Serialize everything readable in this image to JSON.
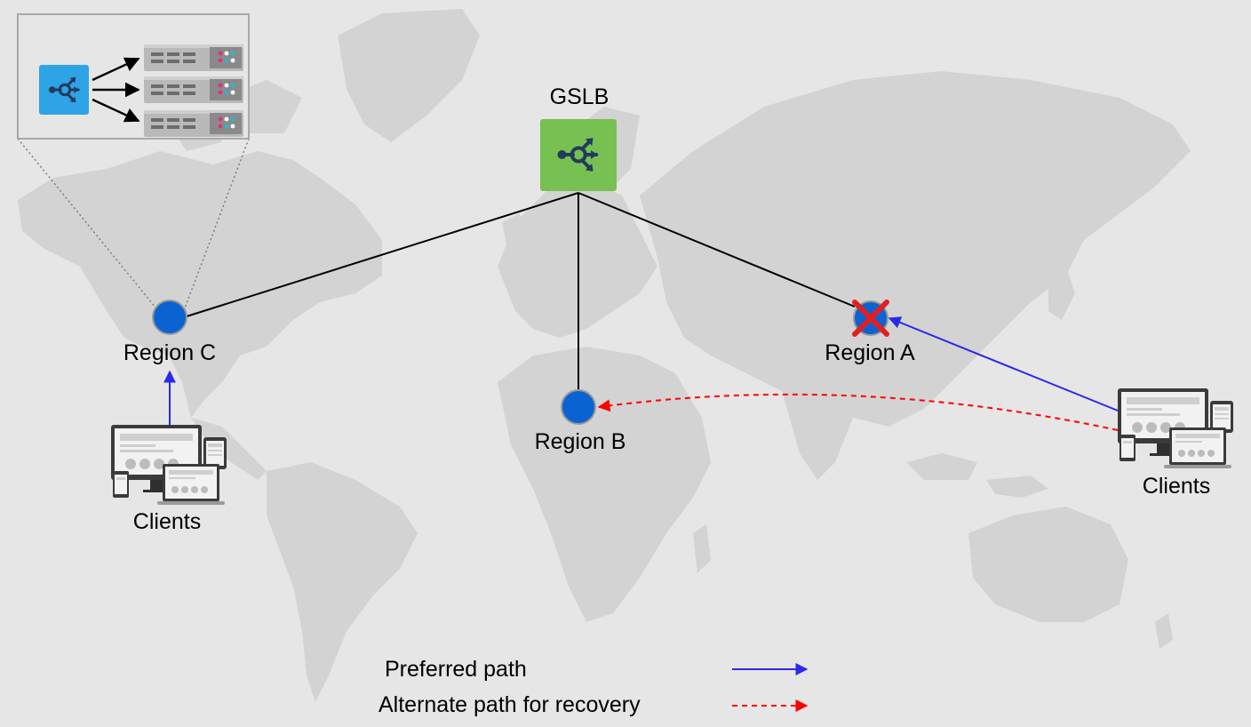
{
  "gslb": {
    "label": "GSLB"
  },
  "regions": {
    "a": {
      "label": "Region A",
      "status": "failed"
    },
    "b": {
      "label": "Region B"
    },
    "c": {
      "label": "Region C"
    }
  },
  "clients": {
    "west": {
      "label": "Clients"
    },
    "east": {
      "label": "Clients"
    }
  },
  "legend": {
    "preferred": {
      "label": "Preferred path",
      "color": "#2a2ae8"
    },
    "alternate": {
      "label": "Alternate path for recovery",
      "color": "#ff0000"
    }
  },
  "colors": {
    "background": "#e6e6e6",
    "continents": "#d3d3d3",
    "gslb_box": "#77c052",
    "load_balancer_box": "#2ea3e6",
    "region_dot": "#0b63d2",
    "failure_mark": "#e02020"
  },
  "icons": {
    "gslb": "load-balancer-icon",
    "detail_balancer": "load-balancer-icon",
    "server": "server-rack-icon",
    "failure": "x-mark-icon",
    "clients": "devices-icon"
  }
}
